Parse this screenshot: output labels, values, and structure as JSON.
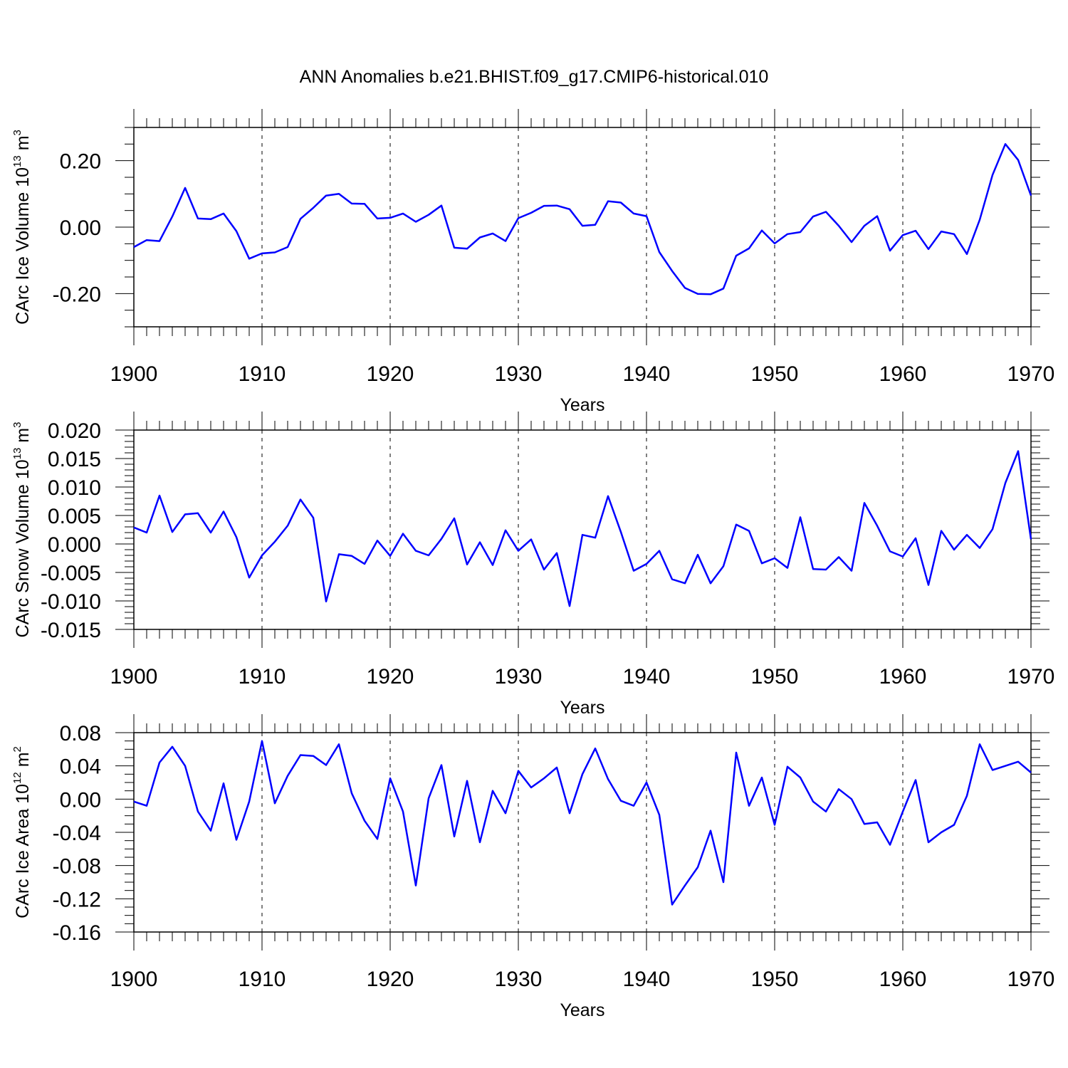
{
  "title": "ANN Anomalies b.e21.BHIST.f09_g17.CMIP6-historical.010",
  "chart_data": [
    {
      "type": "line",
      "ylabel": "CArc Ice Volume 10",
      "ylabel_exp": "13",
      "ylabel_unit": " m",
      "ylabel_unit_exp": "3",
      "xlabel": "Years",
      "xlim": [
        1900,
        1970
      ],
      "ylim": [
        -0.3,
        0.3
      ],
      "yticks": [
        -0.2,
        0.0,
        0.2
      ],
      "ytick_labels": [
        "-0.20",
        "0.00",
        "0.20"
      ],
      "y_minor_step": 0.05,
      "xticks": [
        1900,
        1910,
        1920,
        1930,
        1940,
        1950,
        1960,
        1970
      ],
      "xtick_labels": [
        "1900",
        "1910",
        "1920",
        "1930",
        "1940",
        "1950",
        "1960",
        "1970"
      ],
      "grid": "dashed vertical at labeled x ticks",
      "color": "#0000ff",
      "x": [
        1900,
        1901,
        1902,
        1903,
        1904,
        1905,
        1906,
        1907,
        1908,
        1909,
        1910,
        1911,
        1912,
        1913,
        1914,
        1915,
        1916,
        1917,
        1918,
        1919,
        1920,
        1921,
        1922,
        1923,
        1924,
        1925,
        1926,
        1927,
        1928,
        1929,
        1930,
        1931,
        1932,
        1933,
        1934,
        1935,
        1936,
        1937,
        1938,
        1939,
        1940,
        1941,
        1942,
        1943,
        1944,
        1945,
        1946,
        1947,
        1948,
        1949,
        1950,
        1951,
        1952,
        1953,
        1954,
        1955,
        1956,
        1957,
        1958,
        1959,
        1960,
        1961,
        1962,
        1963,
        1964,
        1965,
        1966,
        1967,
        1968,
        1969,
        1970
      ],
      "y": [
        -0.06,
        -0.039,
        -0.042,
        0.032,
        0.118,
        0.026,
        0.024,
        0.041,
        -0.012,
        -0.095,
        -0.079,
        -0.076,
        -0.06,
        0.025,
        0.058,
        0.095,
        0.1,
        0.071,
        0.07,
        0.026,
        0.028,
        0.041,
        0.016,
        0.037,
        0.065,
        -0.062,
        -0.065,
        -0.031,
        -0.019,
        -0.042,
        0.027,
        0.043,
        0.064,
        0.065,
        0.054,
        0.004,
        0.007,
        0.078,
        0.074,
        0.041,
        0.033,
        -0.075,
        -0.132,
        -0.183,
        -0.201,
        -0.202,
        -0.185,
        -0.086,
        -0.064,
        -0.01,
        -0.049,
        -0.021,
        -0.015,
        0.032,
        0.046,
        0.004,
        -0.045,
        0.004,
        0.033,
        -0.071,
        -0.024,
        -0.011,
        -0.066,
        -0.013,
        -0.021,
        -0.081,
        0.022,
        0.157,
        0.25,
        0.202,
        0.095
      ]
    },
    {
      "type": "line",
      "ylabel": "CArc Snow Volume 10",
      "ylabel_exp": "13",
      "ylabel_unit": " m",
      "ylabel_unit_exp": "3",
      "xlabel": "Years",
      "xlim": [
        1900,
        1970
      ],
      "ylim": [
        -0.015,
        0.02
      ],
      "yticks": [
        -0.015,
        -0.01,
        -0.005,
        0.0,
        0.005,
        0.01,
        0.015,
        0.02
      ],
      "ytick_labels": [
        "-0.015",
        "-0.010",
        "-0.005",
        "0.000",
        "0.005",
        "0.010",
        "0.015",
        "0.020"
      ],
      "y_minor_step": 0.001,
      "xticks": [
        1900,
        1910,
        1920,
        1930,
        1940,
        1950,
        1960,
        1970
      ],
      "xtick_labels": [
        "1900",
        "1910",
        "1920",
        "1930",
        "1940",
        "1950",
        "1960",
        "1970"
      ],
      "grid": "dashed vertical at labeled x ticks",
      "color": "#0000ff",
      "x": [
        1900,
        1901,
        1902,
        1903,
        1904,
        1905,
        1906,
        1907,
        1908,
        1909,
        1910,
        1911,
        1912,
        1913,
        1914,
        1915,
        1916,
        1917,
        1918,
        1919,
        1920,
        1921,
        1922,
        1923,
        1924,
        1925,
        1926,
        1927,
        1928,
        1929,
        1930,
        1931,
        1932,
        1933,
        1934,
        1935,
        1936,
        1937,
        1938,
        1939,
        1940,
        1941,
        1942,
        1943,
        1944,
        1945,
        1946,
        1947,
        1948,
        1949,
        1950,
        1951,
        1952,
        1953,
        1954,
        1955,
        1956,
        1957,
        1958,
        1959,
        1960,
        1961,
        1962,
        1963,
        1964,
        1965,
        1966,
        1967,
        1968,
        1969,
        1970
      ],
      "y": [
        0.0029,
        0.002,
        0.0085,
        0.0021,
        0.0052,
        0.0054,
        0.002,
        0.0057,
        0.0012,
        -0.0059,
        -0.002,
        0.0004,
        0.0032,
        0.0078,
        0.0046,
        -0.0101,
        -0.0018,
        -0.0021,
        -0.0035,
        0.0006,
        -0.0021,
        0.0018,
        -0.0012,
        -0.002,
        0.0009,
        0.0045,
        -0.0036,
        0.0003,
        -0.0037,
        0.0024,
        -0.0012,
        0.0008,
        -0.0045,
        -0.0016,
        -0.0109,
        0.0016,
        0.0011,
        0.0084,
        0.0021,
        -0.0047,
        -0.0035,
        -0.0012,
        -0.0062,
        -0.0069,
        -0.0019,
        -0.0069,
        -0.0039,
        0.0034,
        0.0023,
        -0.0034,
        -0.0025,
        -0.0042,
        0.0047,
        -0.0044,
        -0.0045,
        -0.0023,
        -0.0047,
        0.0072,
        0.0032,
        -0.0013,
        -0.0022,
        0.001,
        -0.0072,
        0.0023,
        -0.001,
        0.0016,
        -0.0007,
        0.0026,
        0.0107,
        0.0163,
        0.0008
      ]
    },
    {
      "type": "line",
      "ylabel": "CArc Ice Area 10",
      "ylabel_exp": "12",
      "ylabel_unit": " m",
      "ylabel_unit_exp": "2",
      "xlabel": "Years",
      "xlim": [
        1900,
        1970
      ],
      "ylim": [
        -0.16,
        0.08
      ],
      "yticks": [
        -0.16,
        -0.12,
        -0.08,
        -0.04,
        0.0,
        0.04,
        0.08
      ],
      "ytick_labels": [
        "-0.16",
        "-0.12",
        "-0.08",
        "-0.04",
        "0.00",
        "0.04",
        "0.08"
      ],
      "y_minor_step": 0.01,
      "xticks": [
        1900,
        1910,
        1920,
        1930,
        1940,
        1950,
        1960,
        1970
      ],
      "xtick_labels": [
        "1900",
        "1910",
        "1920",
        "1930",
        "1940",
        "1950",
        "1960",
        "1970"
      ],
      "grid": "dashed vertical at labeled x ticks",
      "color": "#0000ff",
      "x": [
        1900,
        1901,
        1902,
        1903,
        1904,
        1905,
        1906,
        1907,
        1908,
        1909,
        1910,
        1911,
        1912,
        1913,
        1914,
        1915,
        1916,
        1917,
        1918,
        1919,
        1920,
        1921,
        1922,
        1923,
        1924,
        1925,
        1926,
        1927,
        1928,
        1929,
        1930,
        1931,
        1932,
        1933,
        1934,
        1935,
        1936,
        1937,
        1938,
        1939,
        1940,
        1941,
        1942,
        1943,
        1944,
        1945,
        1946,
        1947,
        1948,
        1949,
        1950,
        1951,
        1952,
        1953,
        1954,
        1955,
        1956,
        1957,
        1958,
        1959,
        1960,
        1961,
        1962,
        1963,
        1964,
        1965,
        1966,
        1967,
        1968,
        1969,
        1970
      ],
      "y": [
        -0.003,
        -0.008,
        0.044,
        0.063,
        0.04,
        -0.015,
        -0.038,
        0.019,
        -0.049,
        -0.003,
        0.07,
        -0.005,
        0.028,
        0.053,
        0.052,
        0.041,
        0.066,
        0.007,
        -0.026,
        -0.048,
        0.025,
        -0.015,
        -0.104,
        0.001,
        0.041,
        -0.045,
        0.022,
        -0.052,
        0.01,
        -0.017,
        0.034,
        0.014,
        0.025,
        0.038,
        -0.017,
        0.03,
        0.061,
        0.024,
        -0.002,
        -0.008,
        0.02,
        -0.019,
        -0.127,
        -0.104,
        -0.082,
        -0.038,
        -0.1,
        0.056,
        -0.008,
        0.026,
        -0.031,
        0.039,
        0.026,
        -0.003,
        -0.015,
        0.012,
        0.0,
        -0.03,
        -0.028,
        -0.055,
        -0.015,
        0.023,
        -0.052,
        -0.04,
        -0.031,
        0.004,
        0.066,
        0.035,
        0.04,
        0.045,
        0.032
      ]
    }
  ]
}
